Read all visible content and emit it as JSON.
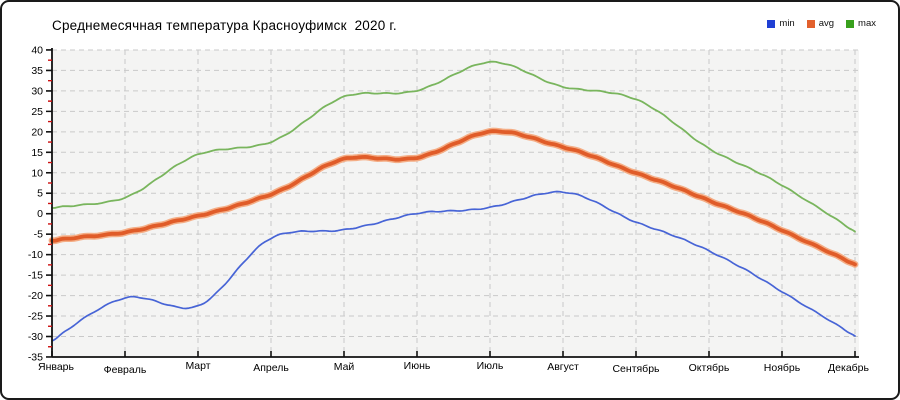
{
  "title": "Среднемесячная температура Красноуфимск  2020 г.",
  "legend": [
    {
      "label": "min",
      "color": "#1f3fd4"
    },
    {
      "label": "avg",
      "color": "#e2602c"
    },
    {
      "label": "max",
      "color": "#38a01c"
    }
  ],
  "chart_data": {
    "type": "line",
    "title": "Среднемесячная температура Красноуфимск  2020 г.",
    "categories": [
      "Январь",
      "Февраль",
      "Март",
      "Апрель",
      "Май",
      "Июнь",
      "Июль",
      "Август",
      "Сентябрь",
      "Октябрь",
      "Ноябрь",
      "Декабрь"
    ],
    "series": [
      {
        "name": "min",
        "color": "#4764d6",
        "width": 1.7,
        "values": [
          -31,
          -20.5,
          -22.5,
          -6,
          -4,
          0,
          1.5,
          5.3,
          -2,
          -9,
          -19,
          -30
        ]
      },
      {
        "name": "avg",
        "color": "#e05c29",
        "halo": "#f4ad85",
        "width": 3.8,
        "values": [
          -6.5,
          -4.5,
          -0.5,
          4.7,
          13.3,
          13.6,
          20,
          16.3,
          10,
          3.3,
          -4,
          -12.5
        ]
      },
      {
        "name": "max",
        "color": "#79b55d",
        "width": 1.8,
        "values": [
          1.5,
          4,
          14.5,
          17.5,
          28.5,
          30,
          37,
          31,
          28,
          16,
          7,
          -4.5
        ]
      }
    ],
    "ylabel": "",
    "xlabel": "",
    "ylim": [
      -35,
      40
    ],
    "ytick_step": 5,
    "yminor_step": 2.5,
    "grid": true,
    "legend_position": "top-right",
    "plot_bg": "#f4f4f3",
    "grid_color": "#c9c9c9",
    "axis_color": "#111111",
    "minor_tick_color": "#cc1111",
    "tick_label_color": "#000000"
  }
}
